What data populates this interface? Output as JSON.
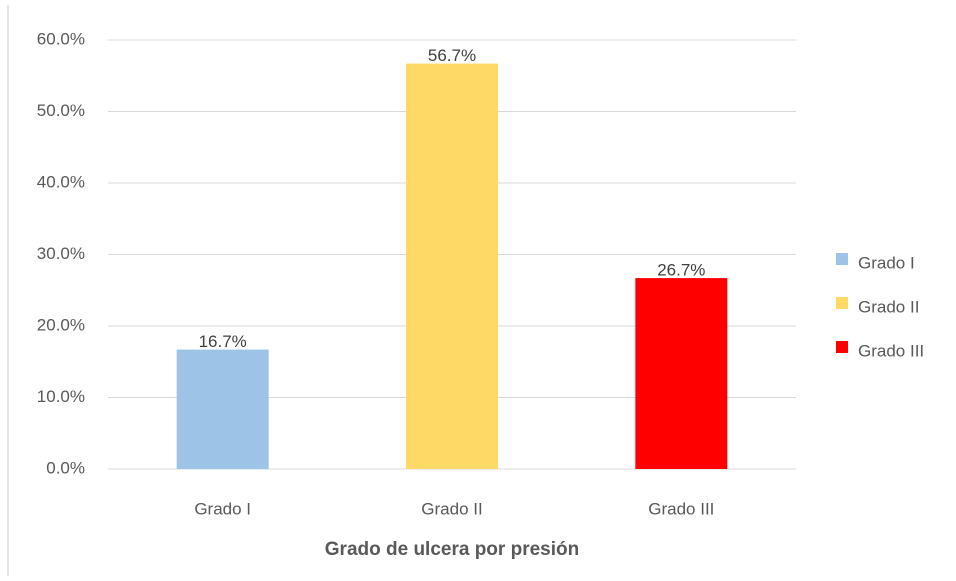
{
  "chart_data": {
    "type": "bar",
    "x_label": "Grado de ulcera por presión",
    "categories": [
      "Grado I",
      "Grado II",
      "Grado III"
    ],
    "values": [
      16.7,
      56.7,
      26.7
    ],
    "value_labels": [
      "16.7%",
      "56.7%",
      "26.7%"
    ],
    "colors": [
      "#9dc3e6",
      "#ffd966",
      "#ff0000"
    ],
    "ylim": [
      0,
      60
    ],
    "yticks": [
      {
        "value": 0,
        "label": "0.0%"
      },
      {
        "value": 10,
        "label": "10.0%"
      },
      {
        "value": 20,
        "label": "20.0%"
      },
      {
        "value": 30,
        "label": "30.0%"
      },
      {
        "value": 40,
        "label": "40.0%"
      },
      {
        "value": 50,
        "label": "50.0%"
      },
      {
        "value": 60,
        "label": "60.0%"
      }
    ],
    "grid": true,
    "legend": "right"
  }
}
